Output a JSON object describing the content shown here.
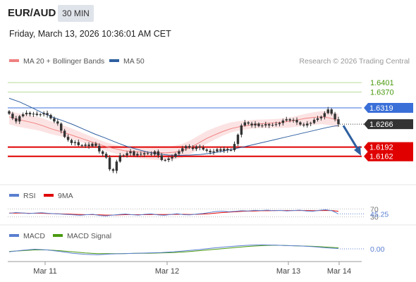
{
  "header": {
    "pair": "EUR/AUD",
    "timeframe": "30 MIN",
    "datetime": "Friday, March 13, 2026 10:36:01 AM CET"
  },
  "legend": {
    "bollinger": "MA 20 + Bollinger Bands",
    "ma50": "MA 50",
    "copyright": "Research © 2026 Trading Central",
    "rsi": "RSI",
    "rsi_ma": "9MA",
    "macd": "MACD",
    "macd_signal": "MACD Signal"
  },
  "colors": {
    "bollinger": "#f08080",
    "ma50": "#2e5fa0",
    "green_level": "#4a9a10",
    "blue_level": "#3a6fd8",
    "red_level": "#e00000",
    "current": "#333333",
    "rsi": "#5a7fd0",
    "rsi_ma": "#e00000",
    "macd": "#5a7fd0",
    "macd_signal": "#4a9a10",
    "arrow": "#2e5fa0"
  },
  "chart_data": [
    {
      "type": "candlestick",
      "x_ticks": [
        "Mar 11",
        "Mar 12",
        "Mar 13",
        "Mar 14"
      ],
      "levels": [
        {
          "value": 1.6401,
          "label": "1.6401",
          "style": "green"
        },
        {
          "value": 1.637,
          "label": "1.6370",
          "style": "green"
        },
        {
          "value": 1.6319,
          "label": "1.6319",
          "style": "blue"
        },
        {
          "value": 1.6192,
          "label": "1.6192",
          "style": "red"
        },
        {
          "value": 1.6162,
          "label": "1.6162",
          "style": "red"
        }
      ],
      "current_price": {
        "value": 1.6266,
        "label": "1.6266"
      },
      "ylim": [
        1.607,
        1.644
      ],
      "close_series": [
        1.63,
        1.6285,
        1.6275,
        1.6292,
        1.6298,
        1.6303,
        1.6298,
        1.63,
        1.6296,
        1.6298,
        1.6302,
        1.6296,
        1.6285,
        1.6275,
        1.6268,
        1.6245,
        1.6225,
        1.6215,
        1.6205,
        1.6208,
        1.6198,
        1.6196,
        1.62,
        1.6195,
        1.6203,
        1.6196,
        1.6178,
        1.617,
        1.6158,
        1.612,
        1.6115,
        1.6145,
        1.6165,
        1.6165,
        1.6172,
        1.6178,
        1.6165,
        1.617,
        1.6168,
        1.6172,
        1.617,
        1.6168,
        1.6178,
        1.6165,
        1.615,
        1.615,
        1.6155,
        1.616,
        1.617,
        1.6178,
        1.6188,
        1.6195,
        1.619,
        1.6186,
        1.6194,
        1.619,
        1.6184,
        1.618,
        1.6175,
        1.6178,
        1.6185,
        1.618,
        1.6186,
        1.6182,
        1.6182,
        1.6202,
        1.6232,
        1.6262,
        1.6272,
        1.6268,
        1.6262,
        1.6268,
        1.626,
        1.6262,
        1.6266,
        1.6262,
        1.6264,
        1.6266,
        1.627,
        1.6278,
        1.6282,
        1.6278,
        1.628,
        1.6272,
        1.6265,
        1.6262,
        1.6268,
        1.627,
        1.628,
        1.6285,
        1.629,
        1.6302,
        1.6314,
        1.63,
        1.6282,
        1.6266
      ],
      "ma20_series": [
        1.629,
        1.6282,
        1.6276,
        1.627,
        1.6262,
        1.6252,
        1.6244,
        1.6236,
        1.6227,
        1.6218,
        1.6209,
        1.62,
        1.6192,
        1.6186,
        1.618,
        1.6178,
        1.6176,
        1.6175,
        1.6174,
        1.6173,
        1.6175,
        1.618,
        1.619,
        1.6205,
        1.622,
        1.6232,
        1.6243,
        1.6252,
        1.6258,
        1.6262,
        1.6266,
        1.6268,
        1.627,
        1.6272,
        1.6275,
        1.628,
        1.6285,
        1.6288,
        1.629,
        1.6286,
        1.6278
      ],
      "ma50_series": [
        1.635,
        1.6338,
        1.6322,
        1.6305,
        1.629,
        1.6278,
        1.6265,
        1.625,
        1.6235,
        1.6222,
        1.6208,
        1.6195,
        1.6185,
        1.6176,
        1.617,
        1.6166,
        1.6165,
        1.6166,
        1.6168,
        1.6172,
        1.6178,
        1.6185,
        1.6192,
        1.62,
        1.6208,
        1.6216,
        1.6224,
        1.6232,
        1.624,
        1.6248,
        1.6256,
        1.6262
      ],
      "forecast": {
        "direction": "down",
        "from": 1.6266,
        "to": 1.6162
      }
    },
    {
      "type": "line",
      "name": "RSI",
      "levels": [
        {
          "value": 70,
          "label": "70"
        },
        {
          "value": 30,
          "label": "30"
        }
      ],
      "current": {
        "value": 45.25,
        "label": "45.25"
      },
      "ylim": [
        0,
        100
      ],
      "rsi_series": [
        48,
        52,
        50,
        47,
        49,
        51,
        48,
        46,
        44,
        42,
        40,
        38,
        41,
        43,
        37,
        35,
        39,
        42,
        44,
        41,
        39,
        43,
        45,
        40,
        38,
        42,
        46,
        41,
        40,
        44,
        47,
        52,
        57,
        59,
        56,
        58,
        61,
        60,
        63,
        62,
        64,
        61,
        63,
        60,
        62,
        64,
        60,
        58,
        63,
        66,
        61,
        45
      ],
      "ma_series": [
        49,
        49,
        49,
        48,
        48,
        48,
        47,
        46,
        45,
        44,
        43,
        42,
        41,
        41,
        40,
        39,
        39,
        40,
        41,
        41,
        41,
        41,
        42,
        42,
        42,
        42,
        43,
        43,
        42,
        43,
        44,
        46,
        49,
        52,
        54,
        56,
        58,
        59,
        60,
        61,
        61,
        62,
        62,
        62,
        62,
        62,
        62,
        61,
        62,
        62,
        62,
        58
      ]
    },
    {
      "type": "line",
      "name": "MACD",
      "current": {
        "value": 0.0,
        "label": "0.00"
      },
      "ylim": [
        -0.0025,
        0.0025
      ],
      "macd_series": [
        -0.0008,
        -0.0004,
        -0.0001,
        -0.0003,
        -0.0007,
        -0.0012,
        -0.0015,
        -0.0016,
        -0.0014,
        -0.0013,
        -0.0012,
        -0.0011,
        -0.001,
        -0.0008,
        -0.0005,
        -0.0002,
        0.0002,
        0.0005,
        0.0008,
        0.001,
        0.0011,
        0.001,
        0.0009,
        0.0008,
        0.0006,
        0.0003,
        0.0001
      ],
      "signal_series": [
        -0.0007,
        -0.0005,
        -0.0003,
        -0.0003,
        -0.0005,
        -0.0008,
        -0.0011,
        -0.0013,
        -0.0013,
        -0.0013,
        -0.0012,
        -0.0012,
        -0.0011,
        -0.001,
        -0.0008,
        -0.0005,
        -0.0002,
        0.0001,
        0.0004,
        0.0007,
        0.0009,
        0.001,
        0.0009,
        0.0008,
        0.0007,
        0.0005,
        0.0003
      ]
    }
  ]
}
